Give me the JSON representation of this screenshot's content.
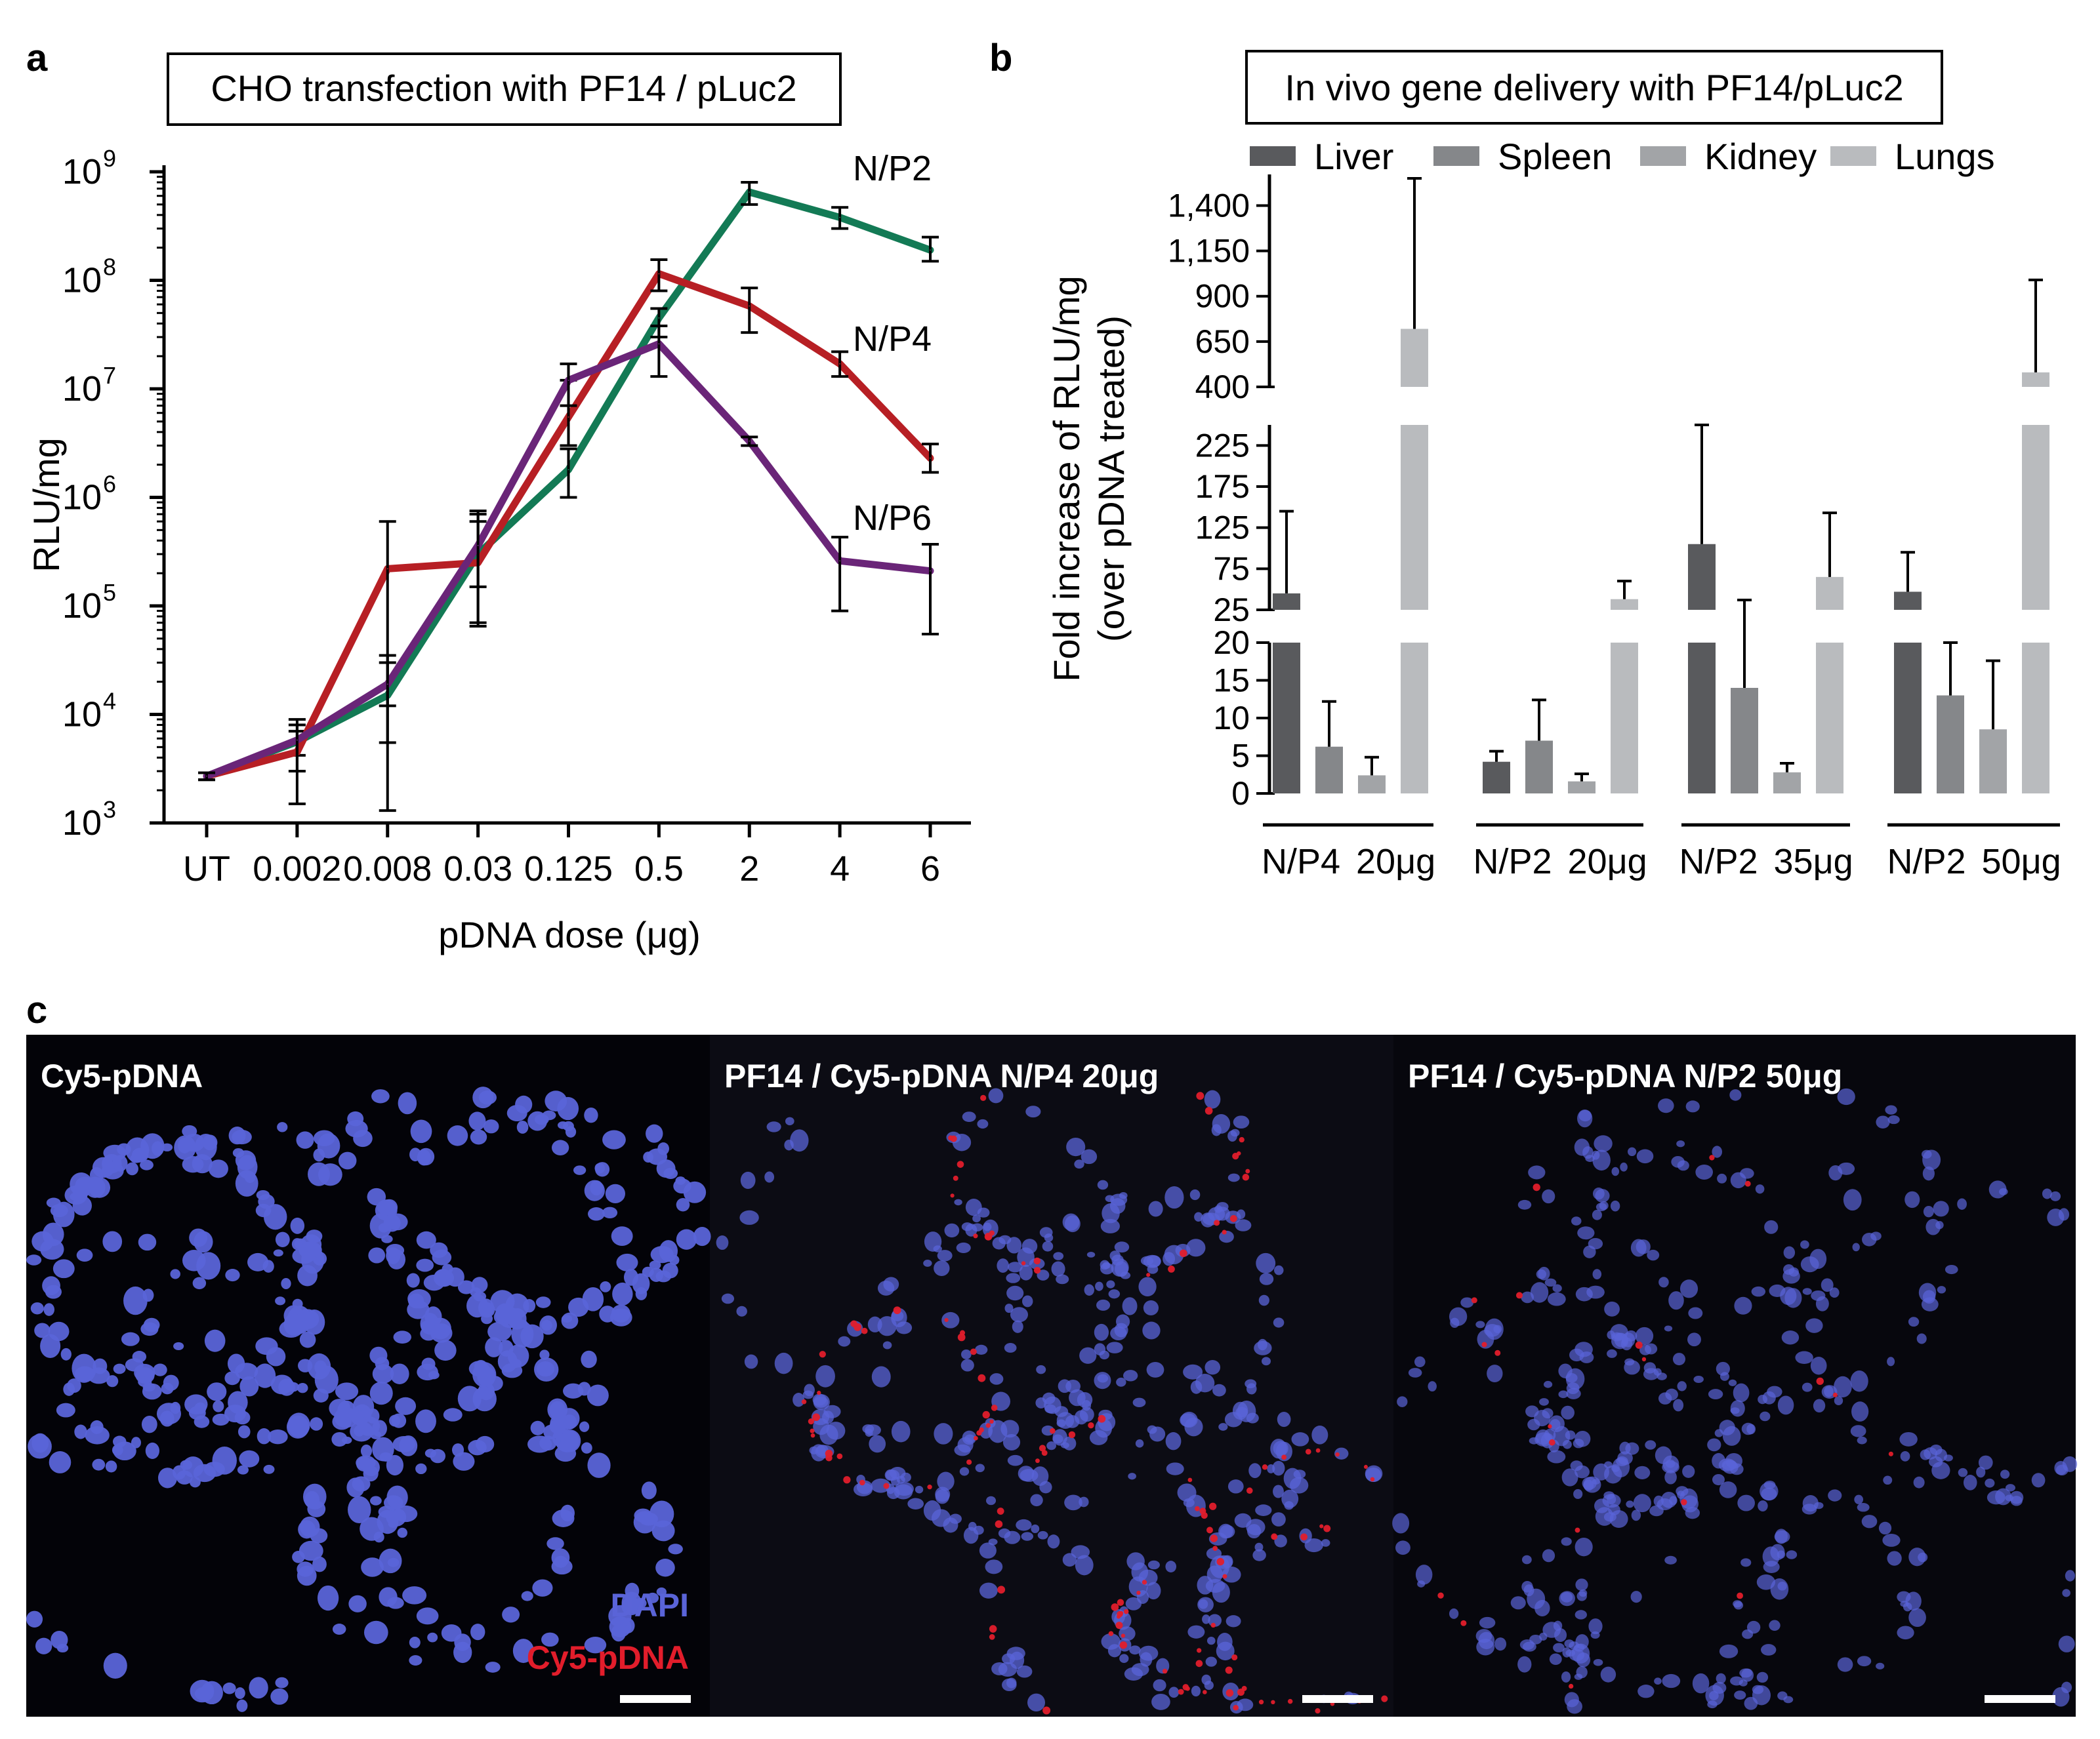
{
  "panel_labels": {
    "a": "a",
    "b": "b",
    "c": "c"
  },
  "colors": {
    "N/P2": "#137a55",
    "N/P4": "#b71f24",
    "N/P6": "#6a2578",
    "Liver": "#595a5d",
    "Spleen": "#85878a",
    "Kidney": "#a2a4a7",
    "Lungs": "#b9bbbe",
    "dapi": "#5a64d8",
    "cy5": "#e21d2b"
  },
  "chart_data": [
    {
      "type": "line",
      "title": "CHO transfection with PF14 / pLuc2",
      "xlabel": "pDNA dose (μg)",
      "ylabel": "RLU/mg",
      "yscale": "log",
      "ylim": [
        1000,
        1000000000
      ],
      "y_ticks": [
        {
          "base": "10",
          "exp": "3",
          "value": 1000
        },
        {
          "base": "10",
          "exp": "4",
          "value": 10000
        },
        {
          "base": "10",
          "exp": "5",
          "value": 100000
        },
        {
          "base": "10",
          "exp": "6",
          "value": 1000000
        },
        {
          "base": "10",
          "exp": "7",
          "value": 10000000
        },
        {
          "base": "10",
          "exp": "8",
          "value": 100000000
        },
        {
          "base": "10",
          "exp": "9",
          "value": 1000000000
        }
      ],
      "categories": [
        "UT",
        "0.002",
        "0.008",
        "0.03",
        "0.125",
        "0.5",
        "2",
        "4",
        "6"
      ],
      "series": [
        {
          "name": "N/P2",
          "values": [
            2700,
            5600,
            15000,
            300000,
            1800000,
            45000000,
            650000000,
            380000000,
            190000000
          ],
          "err_low": [
            2500,
            4200,
            5500,
            70000,
            1000000,
            30000000,
            500000000,
            300000000,
            150000000
          ],
          "err_high": [
            2900,
            7000,
            30000,
            600000,
            2800000,
            55000000,
            800000000,
            470000000,
            250000000
          ]
        },
        {
          "name": "N/P4",
          "values": [
            2700,
            4500,
            220000,
            250000,
            5500000,
            115000000,
            58000000,
            17000000,
            2300000
          ],
          "err_low": [
            2500,
            1500,
            1300,
            65000,
            3000000,
            80000000,
            33000000,
            13000000,
            1700000
          ],
          "err_high": [
            2900,
            9000,
            600000,
            700000,
            12000000,
            155000000,
            85000000,
            22000000,
            3100000
          ]
        },
        {
          "name": "N/P6",
          "values": [
            2700,
            5800,
            19000,
            360000,
            12000000,
            26000000,
            3300000,
            260000,
            210000
          ],
          "err_low": [
            2500,
            3000,
            12000,
            150000,
            7000000,
            13000000,
            3000000,
            90000,
            55000
          ],
          "err_high": [
            2900,
            8000,
            35000,
            750000,
            17000000,
            38000000,
            3600000,
            430000,
            370000
          ]
        }
      ]
    },
    {
      "type": "bar",
      "title": "In vivo gene delivery with PF14/pLuc2",
      "ylabel_line1": "Fold increase of RLU/mg",
      "ylabel_line2": "(over pDNA treated)",
      "legend": [
        "Liver",
        "Spleen",
        "Kidney",
        "Lungs"
      ],
      "legend_position": "top",
      "axis_breaks": [
        20,
        250
      ],
      "y_segments": [
        {
          "range": [
            0,
            20
          ],
          "ticks": [
            "0",
            "5",
            "10",
            "15",
            "20"
          ],
          "values": [
            0,
            5,
            10,
            15,
            20
          ]
        },
        {
          "range": [
            25,
            250
          ],
          "ticks": [
            "25",
            "75",
            "125",
            "175",
            "225"
          ],
          "values": [
            25,
            75,
            125,
            175,
            225
          ]
        },
        {
          "range": [
            400,
            1550
          ],
          "ticks": [
            "400",
            "650",
            "900",
            "1,150",
            "1,400"
          ],
          "values": [
            400,
            650,
            900,
            1150,
            1400
          ]
        }
      ],
      "groups": [
        {
          "label_np": "N/P4",
          "label_dose": "20μg",
          "values": [
            45,
            6.2,
            2.4,
            720
          ],
          "err_high": [
            145,
            12.2,
            4.8,
            1640
          ]
        },
        {
          "label_np": "N/P2",
          "label_dose": "20μg",
          "values": [
            4.2,
            7.0,
            1.6,
            38
          ],
          "err_high": [
            5.6,
            12.4,
            2.6,
            60
          ]
        },
        {
          "label_np": "N/P2",
          "label_dose": "35μg",
          "values": [
            105,
            14,
            2.8,
            65
          ],
          "err_high": [
            250,
            37,
            4.0,
            143
          ]
        },
        {
          "label_np": "N/P2",
          "label_dose": "50μg",
          "values": [
            47,
            13,
            8.5,
            480
          ],
          "err_high": [
            95,
            20,
            17.6,
            990
          ]
        }
      ]
    }
  ],
  "micrographs": [
    {
      "label": "Cy5-pDNA"
    },
    {
      "label": "PF14 / Cy5-pDNA N/P4 20μg"
    },
    {
      "label": "PF14 / Cy5-pDNA N/P2 50μg"
    }
  ],
  "channel_legend": {
    "dapi": "DAPI",
    "cy5": "Cy5-pDNA"
  }
}
